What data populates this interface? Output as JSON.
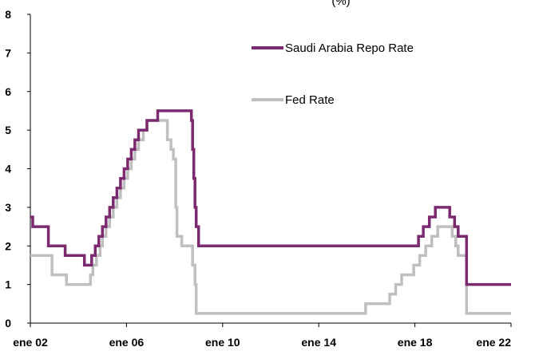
{
  "chart_data": {
    "type": "line",
    "title": "(%)",
    "xlabel": "",
    "ylabel": "",
    "ylim": [
      0,
      8
    ],
    "yticks": [
      "0",
      "1",
      "2",
      "3",
      "4",
      "5",
      "6",
      "7",
      "8"
    ],
    "xlim": [
      2002.0,
      2022.0
    ],
    "xticks": [
      {
        "x": 2002,
        "label": "ene 02"
      },
      {
        "x": 2006,
        "label": "ene 06"
      },
      {
        "x": 2010,
        "label": "ene 10"
      },
      {
        "x": 2014,
        "label": "ene 14"
      },
      {
        "x": 2018,
        "label": "ene 18"
      },
      {
        "x": 2022,
        "label": "ene 22"
      }
    ],
    "grid": false,
    "legend_position": "top-right",
    "colors": {
      "saudi": "#7b2a6f",
      "fed": "#bfbfbf"
    },
    "series": [
      {
        "name": "Saudi Arabia Repo Rate",
        "color": "#7b2a6f",
        "step": true,
        "points": [
          [
            2002.0,
            2.75
          ],
          [
            2002.1,
            2.5
          ],
          [
            2002.75,
            2.0
          ],
          [
            2003.45,
            1.75
          ],
          [
            2004.25,
            1.5
          ],
          [
            2004.55,
            1.75
          ],
          [
            2004.7,
            2.0
          ],
          [
            2004.85,
            2.25
          ],
          [
            2005.0,
            2.5
          ],
          [
            2005.15,
            2.75
          ],
          [
            2005.3,
            3.0
          ],
          [
            2005.45,
            3.25
          ],
          [
            2005.6,
            3.5
          ],
          [
            2005.75,
            3.75
          ],
          [
            2005.9,
            4.0
          ],
          [
            2006.05,
            4.25
          ],
          [
            2006.2,
            4.5
          ],
          [
            2006.35,
            4.75
          ],
          [
            2006.5,
            5.0
          ],
          [
            2006.85,
            5.25
          ],
          [
            2007.3,
            5.5
          ],
          [
            2008.7,
            5.25
          ],
          [
            2008.75,
            4.5
          ],
          [
            2008.8,
            3.75
          ],
          [
            2008.85,
            3.0
          ],
          [
            2008.9,
            2.5
          ],
          [
            2009.0,
            2.0
          ],
          [
            2018.15,
            2.25
          ],
          [
            2018.35,
            2.5
          ],
          [
            2018.6,
            2.75
          ],
          [
            2018.85,
            3.0
          ],
          [
            2019.45,
            2.75
          ],
          [
            2019.65,
            2.5
          ],
          [
            2019.8,
            2.25
          ],
          [
            2020.15,
            1.0
          ],
          [
            2022.0,
            1.0
          ]
        ]
      },
      {
        "name": "Fed Rate",
        "color": "#bfbfbf",
        "step": true,
        "points": [
          [
            2002.0,
            1.75
          ],
          [
            2002.9,
            1.25
          ],
          [
            2003.5,
            1.0
          ],
          [
            2004.5,
            1.25
          ],
          [
            2004.6,
            1.5
          ],
          [
            2004.75,
            1.75
          ],
          [
            2004.9,
            2.0
          ],
          [
            2005.0,
            2.25
          ],
          [
            2005.15,
            2.5
          ],
          [
            2005.3,
            2.75
          ],
          [
            2005.45,
            3.0
          ],
          [
            2005.6,
            3.25
          ],
          [
            2005.75,
            3.5
          ],
          [
            2005.9,
            3.75
          ],
          [
            2006.05,
            4.0
          ],
          [
            2006.2,
            4.25
          ],
          [
            2006.35,
            4.5
          ],
          [
            2006.5,
            4.75
          ],
          [
            2006.7,
            5.0
          ],
          [
            2006.85,
            5.25
          ],
          [
            2007.7,
            4.75
          ],
          [
            2007.85,
            4.5
          ],
          [
            2007.95,
            4.25
          ],
          [
            2008.05,
            3.0
          ],
          [
            2008.1,
            2.25
          ],
          [
            2008.3,
            2.0
          ],
          [
            2008.75,
            1.5
          ],
          [
            2008.85,
            1.0
          ],
          [
            2008.9,
            0.25
          ],
          [
            2015.95,
            0.5
          ],
          [
            2016.95,
            0.75
          ],
          [
            2017.2,
            1.0
          ],
          [
            2017.45,
            1.25
          ],
          [
            2017.95,
            1.5
          ],
          [
            2018.2,
            1.75
          ],
          [
            2018.45,
            2.0
          ],
          [
            2018.7,
            2.25
          ],
          [
            2018.95,
            2.5
          ],
          [
            2019.55,
            2.25
          ],
          [
            2019.7,
            2.0
          ],
          [
            2019.8,
            1.75
          ],
          [
            2020.15,
            0.25
          ],
          [
            2022.0,
            0.25
          ]
        ]
      }
    ]
  }
}
